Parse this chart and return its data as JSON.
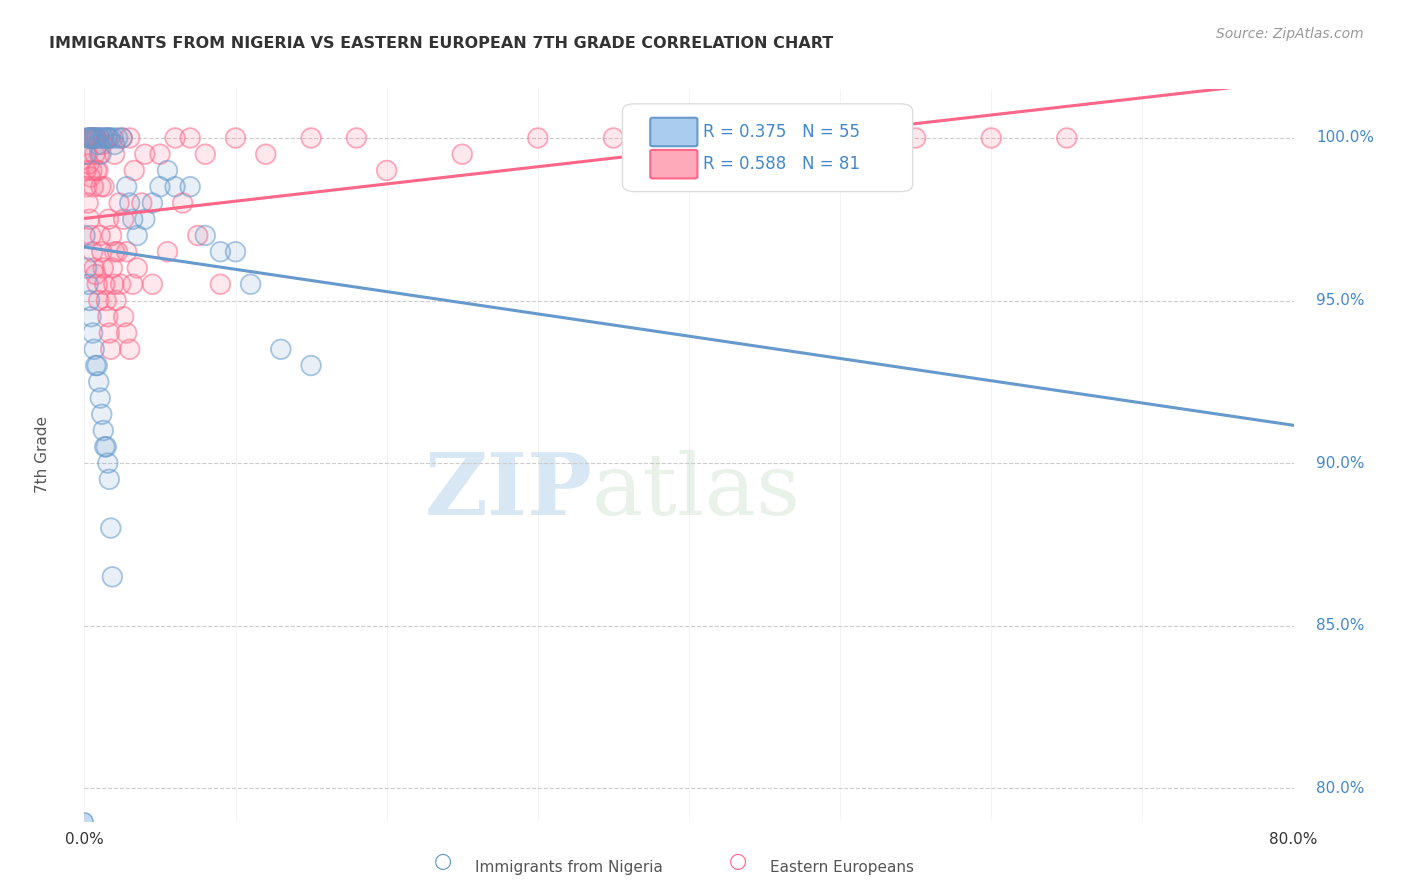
{
  "title": "IMMIGRANTS FROM NIGERIA VS EASTERN EUROPEAN 7TH GRADE CORRELATION CHART",
  "source": "Source: ZipAtlas.com",
  "ylabel": "7th Grade",
  "xlim": [
    0.0,
    80.0
  ],
  "ylim": [
    79.0,
    101.5
  ],
  "yticks": [
    80.0,
    85.0,
    90.0,
    95.0,
    100.0
  ],
  "xticks": [
    0.0,
    10.0,
    20.0,
    30.0,
    40.0,
    50.0,
    60.0,
    70.0,
    80.0
  ],
  "nigeria_color": "#6699CC",
  "eastern_color": "#FF6688",
  "nigeria_R": 0.375,
  "nigeria_N": 55,
  "eastern_R": 0.588,
  "eastern_N": 81,
  "nigeria_points_x": [
    0.1,
    0.2,
    0.3,
    0.4,
    0.5,
    0.6,
    0.7,
    0.8,
    0.9,
    1.0,
    1.1,
    1.2,
    1.3,
    1.5,
    1.6,
    1.7,
    1.9,
    2.0,
    2.2,
    2.5,
    2.8,
    3.0,
    3.2,
    3.5,
    4.0,
    4.5,
    5.0,
    5.5,
    6.0,
    7.0,
    8.0,
    9.0,
    10.0,
    11.0,
    13.0,
    15.0,
    0.05,
    0.15,
    0.25,
    0.35,
    0.45,
    0.55,
    0.65,
    0.75,
    0.85,
    0.95,
    1.05,
    1.15,
    1.25,
    1.35,
    1.45,
    1.55,
    1.65,
    1.75,
    1.85
  ],
  "nigeria_points_y": [
    99.5,
    100.0,
    100.0,
    100.0,
    100.0,
    100.0,
    100.0,
    100.0,
    99.8,
    100.0,
    99.5,
    100.0,
    100.0,
    100.0,
    100.0,
    100.0,
    100.0,
    99.8,
    100.0,
    100.0,
    98.5,
    98.0,
    97.5,
    97.0,
    97.5,
    98.0,
    98.5,
    99.0,
    98.5,
    98.5,
    97.0,
    96.5,
    96.5,
    95.5,
    93.5,
    93.0,
    97.0,
    96.0,
    95.5,
    95.0,
    94.5,
    94.0,
    93.5,
    93.0,
    93.0,
    92.5,
    92.0,
    91.5,
    91.0,
    90.5,
    90.5,
    90.0,
    89.5,
    88.0,
    86.5
  ],
  "eastern_points_x": [
    0.1,
    0.2,
    0.3,
    0.4,
    0.5,
    0.6,
    0.8,
    1.0,
    1.2,
    1.5,
    2.0,
    2.5,
    3.0,
    4.0,
    5.0,
    6.0,
    7.0,
    8.0,
    10.0,
    12.0,
    15.0,
    18.0,
    20.0,
    25.0,
    30.0,
    35.0,
    40.0,
    45.0,
    55.0,
    60.0,
    65.0,
    0.15,
    0.25,
    0.35,
    0.45,
    0.55,
    0.65,
    0.75,
    0.85,
    0.95,
    1.05,
    1.15,
    1.25,
    1.35,
    1.45,
    1.55,
    1.65,
    1.75,
    1.85,
    1.95,
    2.1,
    2.3,
    2.6,
    2.8,
    3.2,
    3.5,
    4.5,
    5.5,
    6.5,
    7.5,
    0.3,
    0.4,
    0.5,
    0.6,
    0.7,
    0.8,
    0.9,
    1.0,
    1.1,
    1.3,
    1.6,
    1.8,
    2.0,
    2.2,
    2.4,
    2.6,
    2.8,
    3.0,
    3.3,
    3.8,
    9.0
  ],
  "eastern_points_y": [
    99.0,
    99.5,
    100.0,
    100.0,
    100.0,
    100.0,
    100.0,
    100.0,
    99.8,
    100.0,
    99.5,
    100.0,
    100.0,
    99.5,
    99.5,
    100.0,
    100.0,
    99.5,
    100.0,
    99.5,
    100.0,
    100.0,
    99.0,
    99.5,
    100.0,
    100.0,
    100.0,
    100.0,
    100.0,
    100.0,
    100.0,
    98.5,
    98.0,
    97.5,
    97.0,
    96.5,
    96.0,
    95.8,
    95.5,
    95.0,
    97.0,
    96.5,
    96.0,
    95.5,
    95.0,
    94.5,
    94.0,
    93.5,
    96.0,
    95.5,
    95.0,
    98.0,
    97.5,
    96.5,
    95.5,
    96.0,
    95.5,
    96.5,
    98.0,
    97.0,
    99.2,
    98.8,
    99.0,
    98.5,
    99.5,
    99.0,
    99.0,
    99.5,
    98.5,
    98.5,
    97.5,
    97.0,
    96.5,
    96.5,
    95.5,
    94.5,
    94.0,
    93.5,
    99.0,
    98.0,
    95.5
  ],
  "watermark_zip": "ZIP",
  "watermark_atlas": "atlas",
  "background_color": "#ffffff",
  "grid_color": "#cccccc",
  "title_color": "#333333",
  "axis_label_color": "#555555",
  "right_axis_color": "#4488CC",
  "legend_text_color": "#4488CC"
}
